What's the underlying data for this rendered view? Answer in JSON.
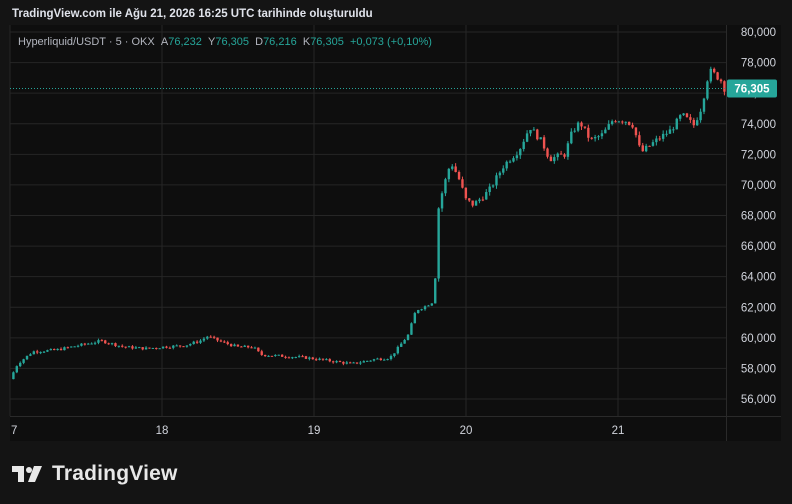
{
  "header": {
    "title": "TradingView.com ile Ağu 21, 2026 16:25 UTC tarihinde oluşturuldu"
  },
  "legend": {
    "symbol": "Hyperliquid/USDT · 5 · OKX",
    "open_label": "A",
    "open_value": "76,232",
    "high_label": "Y",
    "high_value": "76,305",
    "low_label": "D",
    "low_value": "76,216",
    "close_label": "K",
    "close_value": "76,305",
    "change": "+0,073 (+0,10%)"
  },
  "brand": {
    "name": "TradingView"
  },
  "colors": {
    "up": "#26a69a",
    "down": "#ef5350",
    "background": "#0e0e0e",
    "grid": "#262626",
    "axis_text": "#d1d4dc"
  },
  "chart_data": {
    "type": "candlestick",
    "x_ticks": [
      "7",
      "18",
      "19",
      "20",
      "21"
    ],
    "y_ticks": [
      "80,000",
      "78,000",
      "76,000",
      "74,000",
      "72,000",
      "70,000",
      "68,000",
      "66,000",
      "64,000",
      "62,000",
      "60,000",
      "58,000",
      "56,000"
    ],
    "ylim": [
      55000,
      80500
    ],
    "last_price": 76305,
    "last_price_label": "76,305",
    "grid": true,
    "series": [
      {
        "values": [
          [
            17.0,
            57300
          ],
          [
            17.05,
            58300
          ],
          [
            17.15,
            59100
          ],
          [
            17.3,
            59200
          ],
          [
            17.45,
            59500
          ],
          [
            17.6,
            59800
          ],
          [
            17.75,
            59400
          ],
          [
            17.9,
            59300
          ],
          [
            18.0,
            59400
          ],
          [
            18.15,
            59500
          ],
          [
            18.25,
            59800
          ],
          [
            18.3,
            60100
          ],
          [
            18.4,
            59700
          ],
          [
            18.5,
            59400
          ],
          [
            18.6,
            59400
          ],
          [
            18.65,
            58900
          ],
          [
            18.8,
            58800
          ],
          [
            18.95,
            58700
          ],
          [
            19.1,
            58500
          ],
          [
            19.25,
            58300
          ],
          [
            19.4,
            58600
          ],
          [
            19.5,
            58700
          ],
          [
            19.55,
            59300
          ],
          [
            19.62,
            60200
          ],
          [
            19.67,
            61800
          ],
          [
            19.72,
            62000
          ],
          [
            19.79,
            62400
          ],
          [
            19.82,
            68500
          ],
          [
            19.85,
            69800
          ],
          [
            19.9,
            71500
          ],
          [
            19.95,
            70500
          ],
          [
            20.0,
            69000
          ],
          [
            20.05,
            68700
          ],
          [
            20.15,
            69600
          ],
          [
            20.25,
            71300
          ],
          [
            20.35,
            72300
          ],
          [
            20.42,
            73800
          ],
          [
            20.5,
            72800
          ],
          [
            20.55,
            71700
          ],
          [
            20.65,
            72000
          ],
          [
            20.7,
            73500
          ],
          [
            20.75,
            74100
          ],
          [
            20.82,
            72900
          ],
          [
            20.9,
            73300
          ],
          [
            20.97,
            74300
          ],
          [
            21.05,
            74200
          ],
          [
            21.1,
            73900
          ],
          [
            21.15,
            72100
          ],
          [
            21.25,
            72900
          ],
          [
            21.35,
            73600
          ],
          [
            21.42,
            74600
          ],
          [
            21.5,
            73900
          ],
          [
            21.55,
            75100
          ],
          [
            21.6,
            77500
          ],
          [
            21.64,
            77200
          ],
          [
            21.68,
            76800
          ],
          [
            21.7,
            76305
          ]
        ]
      }
    ]
  }
}
